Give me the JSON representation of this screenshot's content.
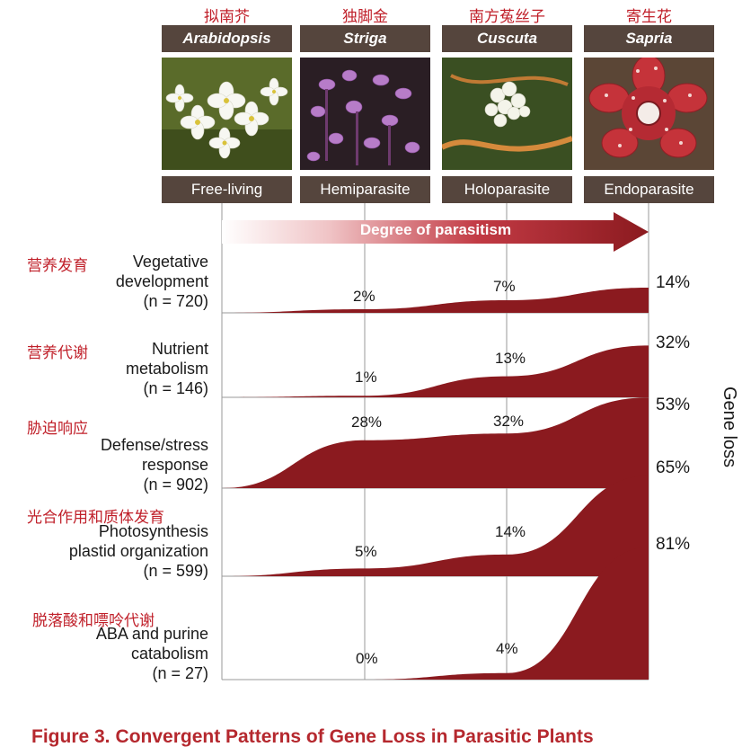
{
  "species": [
    {
      "chinese": "拟南芥",
      "latin": "Arabidopsis",
      "type": "Free-living"
    },
    {
      "chinese": "独脚金",
      "latin": "Striga",
      "type": "Hemiparasite"
    },
    {
      "chinese": "南方菟丝子",
      "latin": "Cuscuta",
      "type": "Holoparasite"
    },
    {
      "chinese": "寄生花",
      "latin": "Sapria",
      "type": "Endoparasite"
    }
  ],
  "arrow_label": "Degree of parasitism",
  "side_label": "Gene loss",
  "rows": [
    {
      "chinese": "营养发育",
      "label1": "Vegetative",
      "label2": "development",
      "label3": "(n = 720)",
      "pct_striga": "2%",
      "pct_cuscuta": "7%",
      "pct_sapria": "14%",
      "values": [
        0,
        2,
        7,
        14
      ]
    },
    {
      "chinese": "营养代谢",
      "label1": "Nutrient",
      "label2": "metabolism",
      "label3": "(n = 146)",
      "pct_striga": "1%",
      "pct_cuscuta": "13%",
      "pct_sapria": "32%",
      "values": [
        0,
        1,
        13,
        32
      ]
    },
    {
      "chinese": "胁迫响应",
      "label1": "Defense/stress",
      "label2": "response",
      "label3": "(n = 902)",
      "pct_striga": "28%",
      "pct_cuscuta": "32%",
      "pct_sapria": "53%",
      "values": [
        0,
        28,
        32,
        53
      ]
    },
    {
      "chinese": "光合作用和质体发育",
      "label1": "Photosynthesis",
      "label2": "plastid organization",
      "label3": "(n = 599)",
      "pct_striga": "5%",
      "pct_cuscuta": "14%",
      "pct_sapria": "65%",
      "values": [
        0,
        5,
        14,
        65
      ]
    },
    {
      "chinese": "脱落酸和嘌呤代谢",
      "label1": "ABA and purine",
      "label2": "catabolism",
      "label3": "(n = 27)",
      "pct_striga": "0%",
      "pct_cuscuta": "4%",
      "pct_sapria": "81%",
      "values": [
        0,
        0,
        4,
        81
      ]
    }
  ],
  "caption": {
    "number": "Figure 3.",
    "title": "Convergent Patterns of Gene Loss in Parasitic Plants"
  },
  "colors": {
    "fill": "#8b1a1f",
    "header_box": "#55453d",
    "chinese_text": "#c0202a",
    "caption": "#b5282e"
  }
}
